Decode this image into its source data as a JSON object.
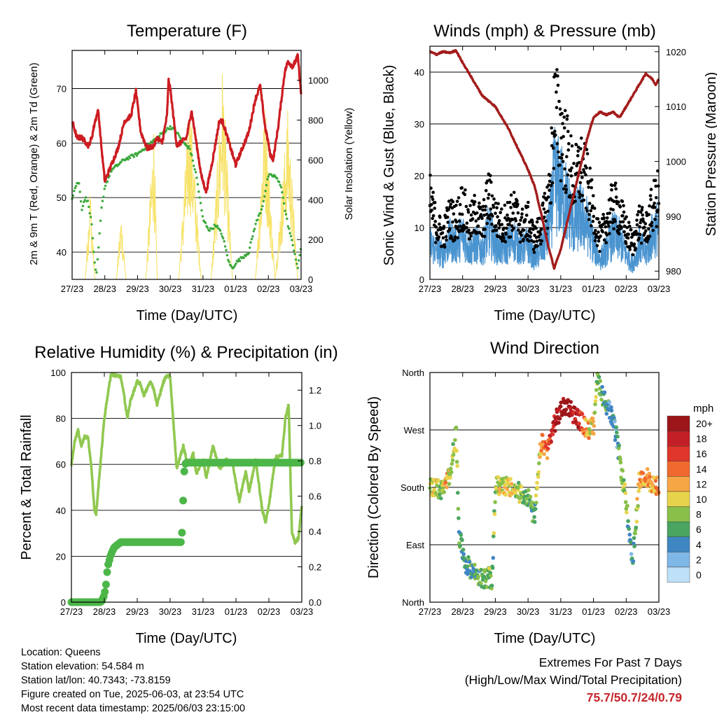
{
  "colors": {
    "temp_red": "#cc1d22",
    "dewpoint_green": "#3aa83a",
    "insolation_yellow": "#f7e36b",
    "gust_black": "#000000",
    "wind_blue": "#4a94d0",
    "pressure_maroon": "#a31c1c",
    "rh_lightgreen": "#90c850",
    "precip_green": "#4cb648",
    "extremes_red": "#c5262b"
  },
  "chart_data": [
    {
      "type": "line",
      "title": "Temperature (F)",
      "xlabel": "Time (Day/UTC)",
      "ylabel": "2m & 9m T (Red, Orange) & 2m Td (Green)",
      "y2label": "Solar Insolation (Yellow)",
      "x_ticks": [
        "27/23",
        "28/23",
        "29/23",
        "30/23",
        "31/23",
        "01/23",
        "02/23",
        "03/23"
      ],
      "xlim": [
        0,
        7
      ],
      "ylim": [
        35,
        77
      ],
      "y_ticks": [
        40,
        50,
        60,
        70
      ],
      "y2lim": [
        0,
        1150
      ],
      "y2_ticks": [
        0,
        200,
        400,
        600,
        800,
        1000
      ],
      "grid_y": true,
      "series": [
        {
          "name": "2m T",
          "color": "#cc1d22",
          "x": [
            0,
            0.15,
            0.3,
            0.5,
            0.6,
            0.7,
            0.8,
            0.9,
            1.0,
            1.2,
            1.4,
            1.6,
            1.8,
            1.95,
            2.1,
            2.3,
            2.5,
            2.6,
            2.75,
            2.9,
            2.95,
            3.0,
            3.2,
            3.5,
            3.65,
            3.8,
            3.95,
            4.1,
            4.3,
            4.5,
            4.6,
            4.8,
            5.0,
            5.2,
            5.4,
            5.6,
            5.75,
            5.9,
            6.0,
            6.05,
            6.15,
            6.2,
            6.3,
            6.4,
            6.5,
            6.6,
            6.75,
            6.9,
            7.0
          ],
          "values": [
            64,
            61,
            61,
            59.5,
            61,
            64,
            66,
            59,
            53,
            56,
            59,
            64,
            65,
            69.5,
            62,
            59,
            59.5,
            61,
            60,
            65,
            71.5,
            70,
            59.5,
            61,
            66,
            60,
            54,
            51,
            57,
            64,
            64,
            60,
            56,
            59,
            62,
            68,
            70.5,
            63,
            60,
            58,
            57,
            59,
            63,
            68,
            73,
            75,
            74,
            76,
            69
          ]
        },
        {
          "name": "2m Td",
          "color": "#3aa83a",
          "x": [
            0,
            0.1,
            0.2,
            0.3,
            0.4,
            0.5,
            0.6,
            0.7,
            0.75,
            0.8,
            0.9,
            1.0,
            1.2,
            1.4,
            1.6,
            1.8,
            2.0,
            2.2,
            2.4,
            2.6,
            2.8,
            3.0,
            3.2,
            3.4,
            3.6,
            3.8,
            4.0,
            4.2,
            4.4,
            4.6,
            4.8,
            4.9,
            5.0,
            5.2,
            5.4,
            5.6,
            5.8,
            6.0,
            6.2,
            6.4,
            6.5,
            6.6,
            6.8,
            6.9,
            7.0
          ],
          "values": [
            50,
            52,
            53,
            48,
            50,
            49,
            45,
            37,
            36,
            40,
            48,
            52,
            55,
            56,
            57,
            57.5,
            58,
            59,
            60,
            61,
            62,
            63,
            62,
            60,
            59,
            54,
            46,
            44,
            45,
            43,
            38,
            37,
            38,
            39,
            40,
            45,
            48,
            54,
            54,
            52,
            48,
            45,
            40,
            37,
            41
          ]
        },
        {
          "name": "Solar Insolation",
          "color": "#f7e36b",
          "axis": "right",
          "x": [
            0,
            0.4,
            0.55,
            0.7,
            0.9,
            1.35,
            1.5,
            1.65,
            1.9,
            2.25,
            2.5,
            2.6,
            2.75,
            2.9,
            3.25,
            3.6,
            3.95,
            4.25,
            4.6,
            4.9,
            5.25,
            5.6,
            5.9,
            6.2,
            6.6,
            6.9,
            7.0
          ],
          "values": [
            0,
            0,
            500,
            0,
            0,
            0,
            350,
            0,
            0,
            0,
            820,
            0,
            0,
            0,
            0,
            950,
            0,
            0,
            1100,
            0,
            0,
            0,
            950,
            0,
            880,
            0,
            0
          ]
        }
      ]
    },
    {
      "type": "scatter",
      "title": "Winds (mph) & Pressure (mb)",
      "xlabel": "Time (Day/UTC)",
      "ylabel": "Sonic Wind & Gust (Blue, Black)",
      "y2label": "Station Pressure (Maroon)",
      "x_ticks": [
        "27/23",
        "28/23",
        "29/23",
        "30/23",
        "31/23",
        "01/23",
        "02/23",
        "03/23"
      ],
      "xlim": [
        0,
        7
      ],
      "ylim": [
        0,
        45
      ],
      "y_ticks": [
        0,
        10,
        20,
        30,
        40
      ],
      "y2lim": [
        978.5,
        1021
      ],
      "y2_ticks": [
        980,
        990,
        1000,
        1010,
        1020
      ],
      "grid_y": true,
      "series": [
        {
          "name": "Gust",
          "color": "#000000",
          "x": [
            0,
            0.2,
            0.4,
            0.6,
            0.8,
            1.0,
            1.2,
            1.4,
            1.6,
            1.8,
            2.0,
            2.2,
            2.4,
            2.6,
            2.8,
            3.0,
            3.2,
            3.4,
            3.6,
            3.7,
            3.8,
            4.0,
            4.2,
            4.4,
            4.6,
            4.8,
            5.0,
            5.2,
            5.4,
            5.6,
            5.8,
            6.0,
            6.2,
            6.4,
            6.6,
            6.8,
            7.0
          ],
          "values": [
            18,
            12,
            10,
            14,
            13,
            17,
            12,
            15,
            12,
            19,
            14,
            12,
            14,
            15,
            12,
            13,
            9,
            12,
            17,
            24,
            38,
            33,
            28,
            22,
            25,
            22,
            15,
            9,
            13,
            17,
            15,
            11,
            8,
            13,
            11,
            16,
            19
          ]
        },
        {
          "name": "Wind",
          "color": "#4a94d0",
          "x": [
            0,
            0.2,
            0.4,
            0.6,
            0.8,
            1.0,
            1.2,
            1.4,
            1.6,
            1.8,
            2.0,
            2.2,
            2.4,
            2.6,
            2.8,
            3.0,
            3.2,
            3.4,
            3.6,
            3.7,
            3.8,
            4.0,
            4.2,
            4.4,
            4.6,
            4.8,
            5.0,
            5.2,
            5.4,
            5.6,
            5.8,
            6.0,
            6.2,
            6.4,
            6.6,
            6.8,
            7.0
          ],
          "values": [
            7,
            6,
            5,
            8,
            7,
            9,
            6,
            7,
            6,
            10,
            7,
            6,
            7,
            8,
            6,
            7,
            4,
            6,
            9,
            13,
            20,
            18,
            15,
            11,
            13,
            11,
            7,
            4,
            6,
            9,
            8,
            5,
            3,
            7,
            5,
            9,
            11
          ]
        },
        {
          "name": "Station Pressure",
          "color": "#a31c1c",
          "axis": "right",
          "x": [
            0,
            0.2,
            0.4,
            0.6,
            0.8,
            1.0,
            1.2,
            1.4,
            1.6,
            1.8,
            2.0,
            2.2,
            2.4,
            2.6,
            2.8,
            3.0,
            3.2,
            3.4,
            3.6,
            3.8,
            4.0,
            4.2,
            4.4,
            4.6,
            4.8,
            5.0,
            5.2,
            5.4,
            5.6,
            5.8,
            6.0,
            6.2,
            6.4,
            6.6,
            6.8,
            6.9,
            7.0
          ],
          "values": [
            1020,
            1019.5,
            1020,
            1019.8,
            1020.2,
            1018,
            1016,
            1014,
            1012,
            1011,
            1010,
            1008,
            1006,
            1003.5,
            1001,
            998.5,
            995.5,
            990.5,
            985,
            980.5,
            984,
            989,
            994,
            999,
            1004,
            1008,
            1009,
            1008.5,
            1009,
            1008,
            1010,
            1012,
            1014,
            1016,
            1015,
            1014,
            1015
          ]
        }
      ]
    },
    {
      "type": "line",
      "title": "Relative Humidity (%) & Precipitation (in)",
      "xlabel": "Time (Day/UTC)",
      "ylabel": "Percent & Total Rainfall",
      "x_ticks": [
        "27/23",
        "28/23",
        "29/23",
        "30/23",
        "31/23",
        "01/23",
        "02/23",
        "03/23"
      ],
      "xlim": [
        0,
        7
      ],
      "ylim": [
        0,
        100
      ],
      "y_ticks": [
        0,
        20,
        40,
        60,
        80,
        100
      ],
      "y2lim": [
        0,
        1.3
      ],
      "y2_ticks": [
        0.0,
        0.2,
        0.4,
        0.6,
        0.8,
        1.0,
        1.2
      ],
      "grid_y": true,
      "series": [
        {
          "name": "Relative Humidity",
          "color": "#90c850",
          "x": [
            0,
            0.1,
            0.2,
            0.3,
            0.4,
            0.5,
            0.6,
            0.7,
            0.75,
            0.85,
            1.0,
            1.1,
            1.2,
            1.3,
            1.5,
            1.6,
            1.7,
            1.8,
            2.0,
            2.1,
            2.2,
            2.4,
            2.5,
            2.6,
            2.8,
            2.9,
            3.0,
            3.2,
            3.4,
            3.5,
            3.6,
            3.7,
            3.8,
            4.0,
            4.1,
            4.3,
            4.5,
            4.7,
            4.9,
            5.1,
            5.3,
            5.4,
            5.6,
            5.8,
            5.9,
            6.0,
            6.2,
            6.4,
            6.5,
            6.6,
            6.7,
            6.8,
            6.9,
            7.0
          ],
          "values": [
            60,
            70,
            75,
            68,
            72,
            72,
            60,
            40,
            38,
            55,
            80,
            90,
            99,
            99,
            98,
            90,
            80,
            88,
            96,
            95,
            90,
            96,
            93,
            86,
            96,
            99,
            98,
            58,
            68,
            62,
            60,
            65,
            56,
            62,
            54,
            68,
            58,
            62,
            60,
            44,
            57,
            48,
            62,
            40,
            35,
            42,
            63,
            64,
            80,
            86,
            30,
            26,
            28,
            42
          ]
        },
        {
          "name": "Total Precipitation",
          "color": "#4cb648",
          "axis": "right",
          "x": [
            0,
            0.4,
            0.8,
            0.9,
            1.0,
            1.05,
            1.1,
            1.2,
            1.3,
            1.5,
            1.8,
            2.1,
            2.4,
            2.8,
            3.0,
            3.2,
            3.35,
            3.38,
            3.4,
            3.42,
            3.45,
            3.5,
            3.8,
            4.2,
            4.6,
            5.0,
            5.5,
            6.0,
            6.5,
            7.0
          ],
          "values": [
            0,
            0,
            0,
            0,
            0.04,
            0.1,
            0.2,
            0.27,
            0.31,
            0.34,
            0.34,
            0.34,
            0.34,
            0.34,
            0.34,
            0.34,
            0.34,
            0.5,
            0.6,
            0.72,
            0.78,
            0.79,
            0.79,
            0.79,
            0.79,
            0.79,
            0.79,
            0.79,
            0.79,
            0.79
          ]
        }
      ]
    },
    {
      "type": "scatter",
      "title": "Wind Direction",
      "xlabel": "Time (Day/UTC)",
      "ylabel": "Direction (Colored By Speed)",
      "x_ticks": [
        "27/23",
        "28/23",
        "29/23",
        "30/23",
        "31/23",
        "01/23",
        "02/23",
        "03/23"
      ],
      "xlim": [
        0,
        7
      ],
      "ylim": [
        0,
        360
      ],
      "y_ticks": [
        "North",
        "East",
        "South",
        "West",
        "North"
      ],
      "grid_y": true,
      "colorbar_title": "mph",
      "colorbar_labels": [
        "20+",
        "18",
        "16",
        "14",
        "12",
        "10",
        "8",
        "6",
        "4",
        "2",
        "0"
      ],
      "colorbar_colors": [
        "#9c1619",
        "#c22026",
        "#e0362b",
        "#f06a2f",
        "#f7a645",
        "#e8d44c",
        "#88c04a",
        "#4aa562",
        "#3f86c3",
        "#7fb7e6",
        "#bfe1f7"
      ],
      "x": [
        0,
        0.2,
        0.35,
        0.5,
        0.6,
        0.7,
        0.8,
        0.9,
        1.0,
        1.1,
        1.2,
        1.4,
        1.6,
        1.8,
        1.9,
        2.0,
        2.2,
        2.4,
        2.6,
        2.8,
        3.0,
        3.2,
        3.4,
        3.6,
        3.8,
        4.0,
        4.2,
        4.4,
        4.6,
        4.8,
        5.0,
        5.1,
        5.2,
        5.3,
        5.5,
        5.7,
        5.9,
        6.0,
        6.1,
        6.2,
        6.4,
        6.6,
        6.8,
        7.0
      ],
      "directions": [
        180,
        180,
        175,
        185,
        200,
        230,
        270,
        100,
        80,
        60,
        55,
        45,
        35,
        40,
        30,
        180,
        185,
        180,
        175,
        170,
        165,
        130,
        250,
        240,
        280,
        300,
        310,
        295,
        285,
        270,
        275,
        350,
        340,
        320,
        300,
        260,
        190,
        160,
        95,
        60,
        190,
        200,
        180,
        185
      ],
      "speeds": [
        8,
        10,
        6,
        12,
        10,
        8,
        9,
        6,
        5,
        4,
        5,
        6,
        7,
        8,
        6,
        9,
        10,
        11,
        9,
        8,
        7,
        6,
        12,
        14,
        18,
        20,
        22,
        19,
        17,
        12,
        10,
        8,
        7,
        6,
        5,
        4,
        8,
        9,
        4,
        5,
        12,
        13,
        11,
        12
      ]
    }
  ],
  "info": {
    "location": "Location: Queens",
    "elevation": "Station elevation: 54.584 m",
    "latlon": "Station lat/lon: 40.7343; -73.8159",
    "created": "Figure created on Tue, 2025-06-03, at 23:54 UTC",
    "recent": "Most recent data timestamp: 2025/06/03 23:15:00"
  },
  "extremes": {
    "title": "Extremes For Past 7 Days",
    "subtitle": "(High/Low/Max Wind/Total Precipitation)",
    "values": "75.7/50.7/24/0.79"
  }
}
